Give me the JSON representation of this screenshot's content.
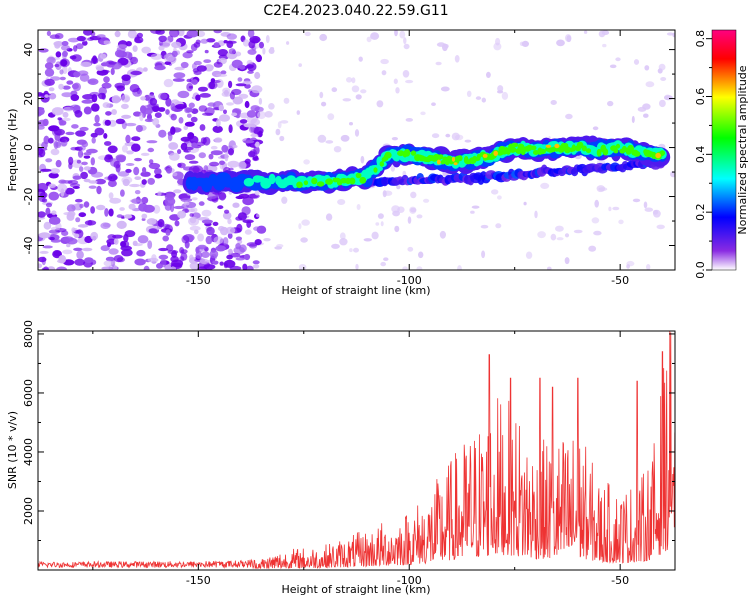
{
  "title": "C2E4.2023.040.22.59.G11",
  "chart_data": [
    {
      "type": "heatmap",
      "xlabel": "Height of straight line (km)",
      "ylabel": "Frequency (Hz)",
      "xlim": [
        -188,
        -37
      ],
      "ylim": [
        -50,
        48
      ],
      "x_ticks": [
        -150,
        -100,
        -50
      ],
      "y_ticks": [
        -40,
        -20,
        0,
        20,
        40
      ],
      "colorbar": {
        "label": "Normalized spectral amplitude",
        "range": [
          0,
          0.83
        ],
        "ticks": [
          "0.0",
          "0.2",
          "0.4",
          "0.6",
          "0.8"
        ],
        "colormap": "rainbow",
        "colors": [
          "#ffffff",
          "#7f00ff",
          "#0000ff",
          "#00ffff",
          "#00ff00",
          "#ffff00",
          "#ff0000",
          "#ff0080"
        ]
      },
      "ridge": {
        "x": [
          -152,
          -145,
          -140,
          -135,
          -130,
          -125,
          -120,
          -115,
          -110,
          -105,
          -100,
          -95,
          -90,
          -85,
          -80,
          -75,
          -70,
          -65,
          -60,
          -55,
          -50,
          -45,
          -40
        ],
        "y": [
          -14,
          -14,
          -14,
          -14,
          -14,
          -14,
          -14,
          -13,
          -12,
          -3,
          -3,
          -4,
          -6,
          -5,
          -3,
          0,
          -1,
          0,
          0,
          -1,
          0,
          -2,
          -3
        ],
        "amplitude": [
          0.15,
          0.2,
          0.25,
          0.35,
          0.4,
          0.5,
          0.5,
          0.55,
          0.45,
          0.5,
          0.55,
          0.6,
          0.7,
          0.6,
          0.65,
          0.6,
          0.6,
          0.65,
          0.55,
          0.55,
          0.55,
          0.6,
          0.75
        ]
      },
      "secondary_ridge": {
        "x": [
          -110,
          -100,
          -90,
          -80,
          -70,
          -60,
          -50,
          -40
        ],
        "y": [
          -14,
          -13,
          -13,
          -12,
          -10,
          -9,
          -8,
          -6
        ]
      },
      "noise_region_x": [
        -188,
        -137
      ]
    },
    {
      "type": "line",
      "xlabel": "Height of straight line (km)",
      "ylabel": "SNR (10 * v/v)",
      "xlim": [
        -188,
        -37
      ],
      "ylim": [
        0,
        8100
      ],
      "x_ticks": [
        -150,
        -100,
        -50
      ],
      "y_ticks": [
        2000,
        4000,
        6000,
        8000
      ],
      "color": "#ee3333",
      "envelope": {
        "x": [
          -188,
          -170,
          -150,
          -140,
          -135,
          -130,
          -125,
          -120,
          -115,
          -110,
          -105,
          -100,
          -95,
          -90,
          -85,
          -82,
          -80,
          -75,
          -70,
          -65,
          -60,
          -55,
          -50,
          -45,
          -42,
          -40,
          -38
        ],
        "y": [
          150,
          160,
          170,
          190,
          250,
          400,
          450,
          500,
          650,
          800,
          1000,
          1200,
          1600,
          2200,
          2800,
          3000,
          3500,
          3200,
          2500,
          2600,
          2800,
          1800,
          1600,
          1800,
          2500,
          3800,
          5000
        ]
      },
      "peaks": [
        {
          "x": -81,
          "y": 7300
        },
        {
          "x": -76,
          "y": 6500
        },
        {
          "x": -69,
          "y": 6500
        },
        {
          "x": -66,
          "y": 6200
        },
        {
          "x": -60,
          "y": 6500
        },
        {
          "x": -46,
          "y": 6400
        },
        {
          "x": -40,
          "y": 7400
        },
        {
          "x": -38,
          "y": 8050
        }
      ]
    }
  ]
}
